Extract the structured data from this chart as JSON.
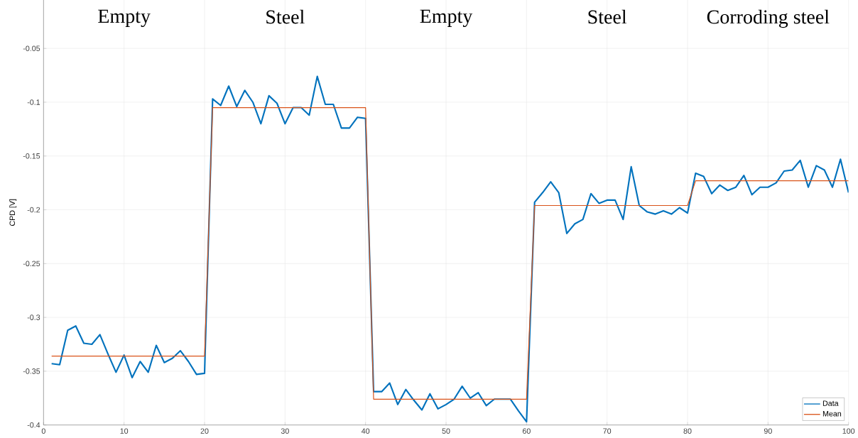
{
  "chart_data": {
    "type": "line",
    "ylabel": "CPD [V]",
    "annotations": [
      "Empty",
      "Steel",
      "Empty",
      "Steel",
      "Corroding steel"
    ],
    "x": [
      1,
      2,
      3,
      4,
      5,
      6,
      7,
      8,
      9,
      10,
      11,
      12,
      13,
      14,
      15,
      16,
      17,
      18,
      19,
      20,
      21,
      22,
      23,
      24,
      25,
      26,
      27,
      28,
      29,
      30,
      31,
      32,
      33,
      34,
      35,
      36,
      37,
      38,
      39,
      40,
      41,
      42,
      43,
      44,
      45,
      46,
      47,
      48,
      49,
      50,
      51,
      52,
      53,
      54,
      55,
      56,
      57,
      58,
      59,
      60,
      61,
      62,
      63,
      64,
      65,
      66,
      67,
      68,
      69,
      70,
      71,
      72,
      73,
      74,
      75,
      76,
      77,
      78,
      79,
      80,
      81,
      82,
      83,
      84,
      85,
      86,
      87,
      88,
      89,
      90,
      91,
      92,
      93,
      94,
      95,
      96,
      97,
      98,
      99,
      100
    ],
    "series": [
      {
        "name": "Data",
        "color": "#0072bd",
        "values": [
          -0.343,
          -0.344,
          -0.312,
          -0.308,
          -0.324,
          -0.325,
          -0.316,
          -0.334,
          -0.351,
          -0.335,
          -0.356,
          -0.341,
          -0.351,
          -0.326,
          -0.342,
          -0.338,
          -0.331,
          -0.341,
          -0.353,
          -0.352,
          -0.097,
          -0.103,
          -0.085,
          -0.104,
          -0.089,
          -0.1,
          -0.12,
          -0.094,
          -0.101,
          -0.12,
          -0.105,
          -0.105,
          -0.112,
          -0.076,
          -0.102,
          -0.102,
          -0.124,
          -0.124,
          -0.114,
          -0.115,
          -0.369,
          -0.369,
          -0.361,
          -0.381,
          -0.367,
          -0.377,
          -0.386,
          -0.371,
          -0.385,
          -0.381,
          -0.376,
          -0.364,
          -0.375,
          -0.37,
          -0.382,
          -0.376,
          -0.376,
          -0.376,
          -0.387,
          -0.397,
          -0.193,
          -0.184,
          -0.174,
          -0.184,
          -0.222,
          -0.213,
          -0.209,
          -0.185,
          -0.194,
          -0.191,
          -0.191,
          -0.209,
          -0.16,
          -0.196,
          -0.202,
          -0.204,
          -0.201,
          -0.204,
          -0.198,
          -0.203,
          -0.166,
          -0.169,
          -0.185,
          -0.177,
          -0.182,
          -0.179,
          -0.168,
          -0.186,
          -0.179,
          -0.179,
          -0.175,
          -0.164,
          -0.163,
          -0.154,
          -0.179,
          -0.159,
          -0.163,
          -0.179,
          -0.153,
          -0.184
        ]
      },
      {
        "name": "Mean",
        "color": "#d95319",
        "x": [
          1,
          20,
          21,
          40,
          41,
          60,
          61,
          80,
          81,
          100
        ],
        "values": [
          -0.336,
          -0.336,
          -0.105,
          -0.105,
          -0.376,
          -0.376,
          -0.196,
          -0.196,
          -0.173,
          -0.173
        ]
      }
    ],
    "xlim": [
      0,
      100
    ],
    "ylim": [
      -0.4,
      -0.005
    ],
    "xticks": [
      0,
      10,
      20,
      30,
      40,
      50,
      60,
      70,
      80,
      90,
      100
    ],
    "yticks": [
      -0.4,
      -0.35,
      -0.3,
      -0.25,
      -0.2,
      -0.15,
      -0.1,
      -0.05
    ],
    "grid": true,
    "legend": "bottom right",
    "marker": "none",
    "line_style": "solid"
  }
}
